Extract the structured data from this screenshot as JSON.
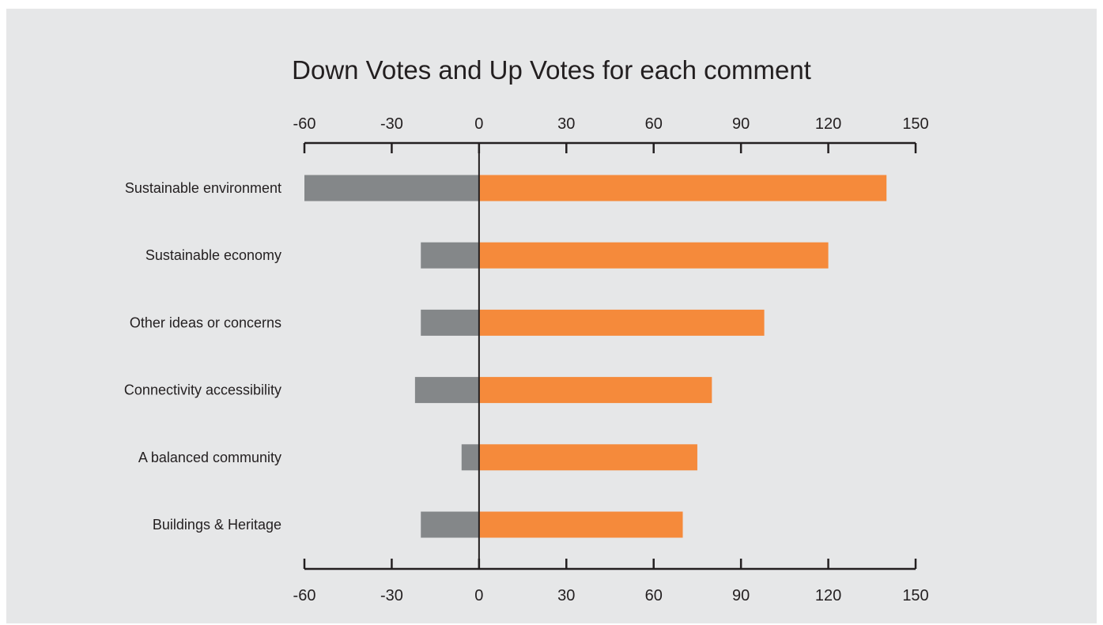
{
  "chart_data": {
    "type": "bar",
    "orientation": "horizontal",
    "title": "Down Votes and Up Votes for each comment",
    "categories": [
      "Sustainable environment",
      "Sustainable economy",
      "Other ideas or concerns",
      "Connectivity accessibility",
      "A balanced community",
      "Buildings &  Heritage"
    ],
    "series": [
      {
        "values": [
          -60,
          -20,
          -20,
          -22,
          -6,
          -20
        ],
        "color": "#848789"
      },
      {
        "values": [
          140,
          120,
          98,
          80,
          75,
          70
        ],
        "color": "#f58a3b"
      }
    ],
    "xlim": [
      -60,
      150
    ],
    "x_ticks": [
      "-60",
      "-30",
      "0",
      "30",
      "60",
      "90",
      "120",
      "150"
    ],
    "x_tick_values": [
      -60,
      -30,
      0,
      30,
      60,
      90,
      120,
      150
    ],
    "xlabel": "",
    "ylabel": "",
    "axis_top": true,
    "axis_bottom": true,
    "grid": false,
    "legend": "none",
    "background": "#e6e7e8",
    "axis_color": "#231f20"
  }
}
